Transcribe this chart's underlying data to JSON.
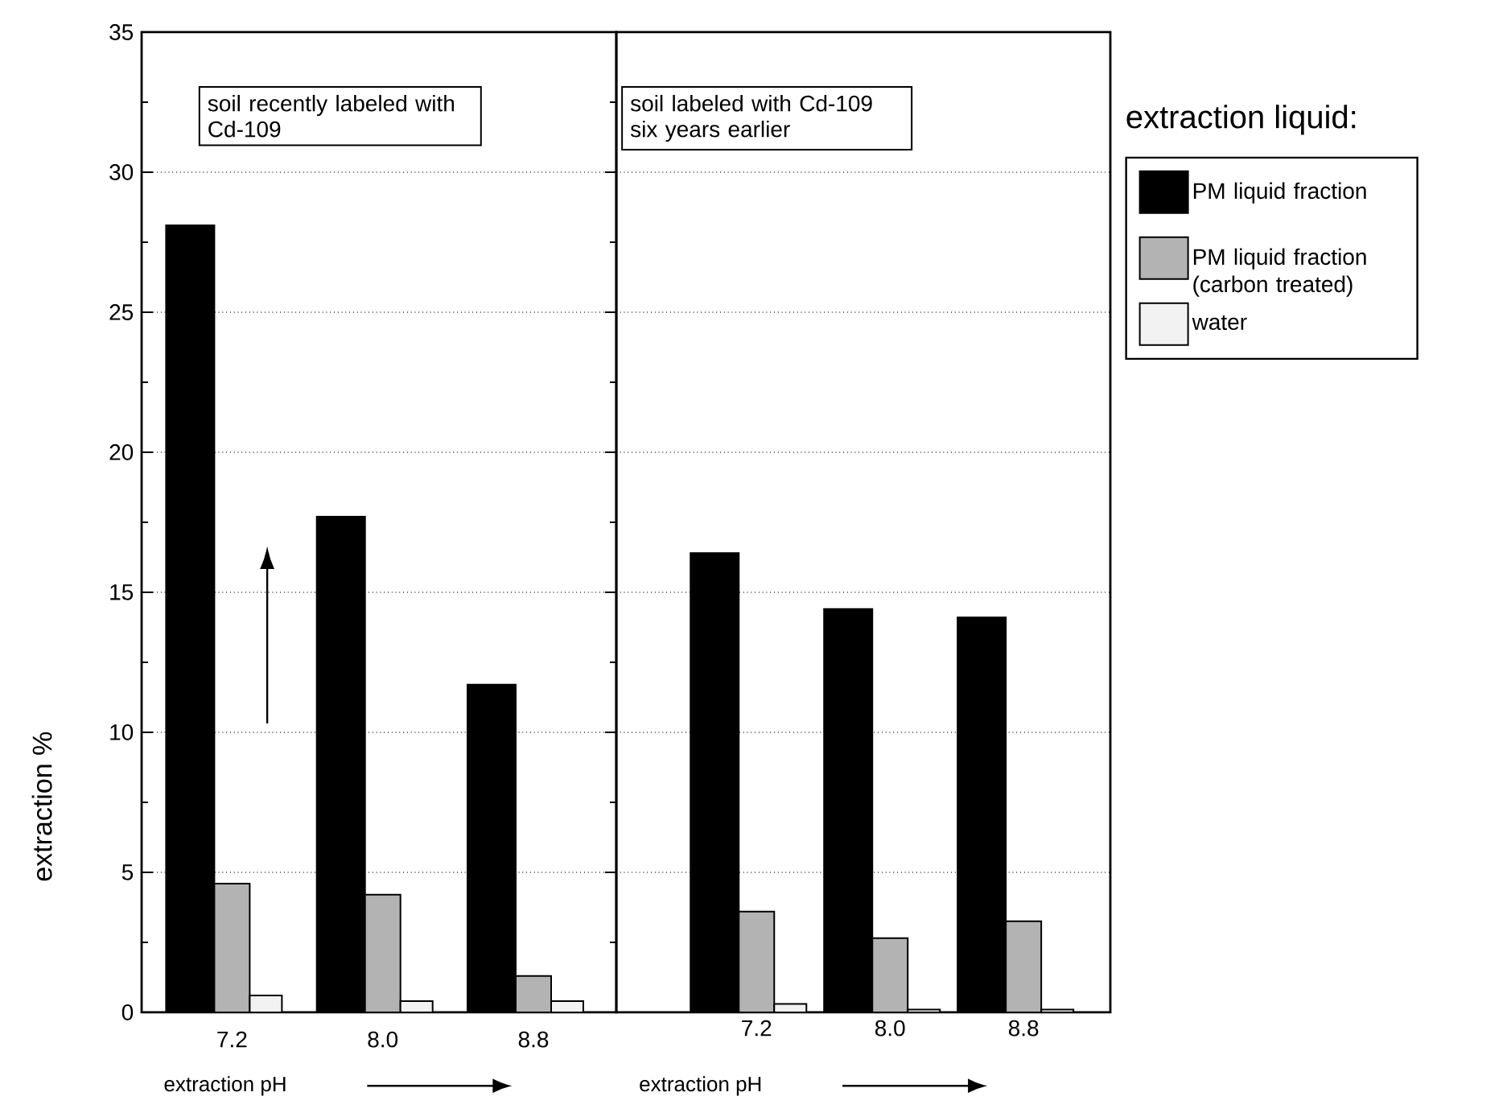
{
  "chart_data": [
    {
      "type": "bar",
      "categories": [
        "7.2",
        "8.0",
        "8.8"
      ],
      "xlabel": "extraction pH",
      "ylabel": "extraction %",
      "annotations": [
        "soil recently labeled with Cd-109"
      ],
      "ylim": [
        0,
        35
      ],
      "yticks": [
        0,
        5,
        10,
        15,
        20,
        25,
        30,
        35
      ],
      "grid": "y",
      "series": [
        {
          "color": "#000000",
          "values": [
            28.1,
            17.7,
            11.7
          ]
        },
        {
          "color": "#b3b3b3",
          "values": [
            4.6,
            4.2,
            1.3
          ]
        },
        {
          "color": "#f2f2f2",
          "values": [
            0.6,
            0.4,
            0.4
          ]
        }
      ]
    },
    {
      "type": "bar",
      "categories": [
        "7.2",
        "8.0",
        "8.8"
      ],
      "xlabel": "extraction pH",
      "annotations": [
        "soil labeled with Cd-109 six years earlier"
      ],
      "ylim": [
        0,
        35
      ],
      "yticks": [
        0,
        5,
        10,
        15,
        20,
        25,
        30,
        35
      ],
      "grid": "y",
      "tick_labels": "x",
      "legend": "right",
      "legend_title": "extraction liquid:",
      "series": [
        {
          "name": "PM liquid fraction",
          "color": "#000000",
          "values": [
            16.4,
            14.4,
            14.1
          ]
        },
        {
          "name": "PM liquid fraction (carbon treated)",
          "color": "#b3b3b3",
          "values": [
            3.6,
            2.65,
            3.25
          ]
        },
        {
          "name": "water",
          "color": "#f2f2f2",
          "values": [
            0.3,
            0.1,
            0.1
          ]
        }
      ]
    }
  ]
}
